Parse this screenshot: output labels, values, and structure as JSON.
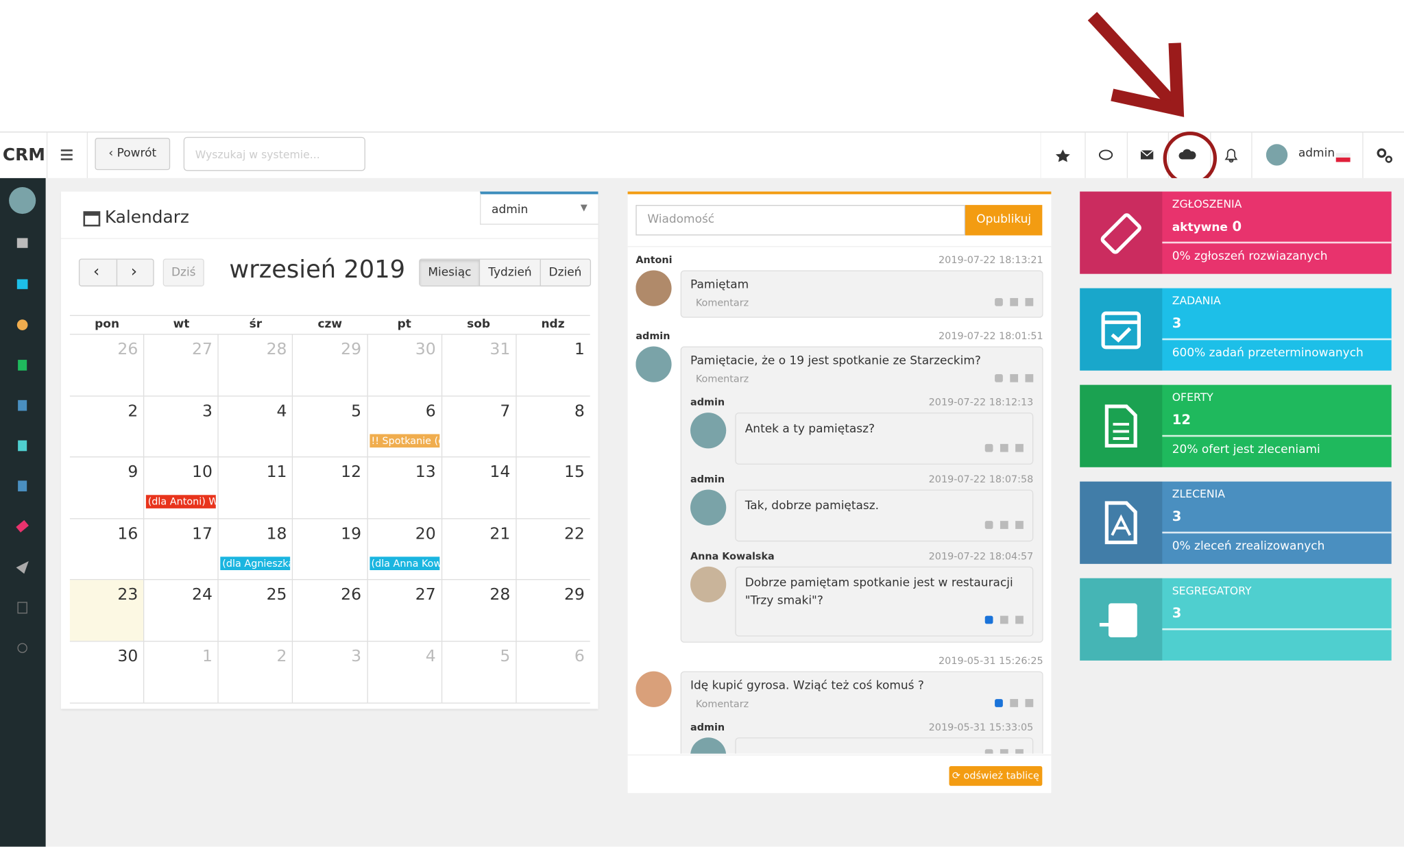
{
  "navbar": {
    "brand": "CRM",
    "back": "Powrót",
    "search_placeholder": "Wyszukaj w systemie...",
    "user": "admin"
  },
  "calendar": {
    "title": "Kalendarz",
    "user_select": "admin",
    "today": "Dziś",
    "month": "wrzesień 2019",
    "views": [
      "Miesiąc",
      "Tydzień",
      "Dzień"
    ],
    "weekdays": [
      "pon",
      "wt",
      "śr",
      "czw",
      "pt",
      "sob",
      "ndz"
    ],
    "weeks": [
      [
        {
          "day": 26,
          "muted": true
        },
        {
          "day": 27,
          "muted": true
        },
        {
          "day": 28,
          "muted": true
        },
        {
          "day": 29,
          "muted": true
        },
        {
          "day": 30,
          "muted": true
        },
        {
          "day": 31,
          "muted": true
        },
        1
      ],
      [
        2,
        3,
        4,
        5,
        {
          "day": 6,
          "event": "!! Spotkanie (d",
          "event_color": "#f0ad4e"
        },
        7,
        8
      ],
      [
        9,
        {
          "day": 10,
          "event": "(dla Antoni) Wy",
          "event_color": "#e8341c"
        },
        11,
        12,
        13,
        14,
        15
      ],
      [
        16,
        17,
        {
          "day": 18,
          "event": "(dla Agnieszka",
          "event_color": "#1ab5e0"
        },
        19,
        {
          "day": 20,
          "event": "(dla Anna Kow",
          "event_color": "#1ab5e0"
        },
        21,
        22
      ],
      [
        {
          "day": 23,
          "today": true
        },
        24,
        25,
        26,
        27,
        28,
        29
      ],
      [
        30,
        {
          "day": 1,
          "muted": true
        },
        {
          "day": 2,
          "muted": true
        },
        {
          "day": 3,
          "muted": true
        },
        {
          "day": 4,
          "muted": true
        },
        {
          "day": 5,
          "muted": true
        },
        {
          "day": 6,
          "muted": true
        }
      ]
    ]
  },
  "feed": {
    "placeholder": "Wiadomość",
    "publish": "Opublikuj",
    "comment": "Komentarz",
    "refresh": "odśwież tablicę",
    "posts": [
      {
        "author": "Antoni",
        "date": "2019-07-22 18:13:21",
        "text": "Pamiętam",
        "avatar": "#b08a6a"
      },
      {
        "author": "admin",
        "date": "2019-07-22 18:01:51",
        "text": "Pamiętacie, że o 19 jest spotkanie ze Starzeckim?",
        "avatar": "#7aa3a8",
        "replies": [
          {
            "author": "admin",
            "date": "2019-07-22 18:12:13",
            "text": "Antek a ty pamiętasz?",
            "avatar": "#7aa3a8"
          },
          {
            "author": "admin",
            "date": "2019-07-22 18:07:58",
            "text": "Tak, dobrze pamiętasz.",
            "avatar": "#7aa3a8"
          },
          {
            "author": "Anna Kowalska",
            "date": "2019-07-22 18:04:57",
            "text": "Dobrze pamiętam spotkanie jest w restauracji \"Trzy smaki\"?",
            "avatar": "#c9b49a",
            "liked": true
          }
        ]
      },
      {
        "date": "2019-05-31 15:26:25",
        "text": "Idę kupić gyrosa. Wziąć też coś komuś ?",
        "avatar": "#d9a07a",
        "liked": true,
        "replies": [
          {
            "author": "admin",
            "date": "2019-05-31 15:33:05",
            "avatar": "#7aa3a8"
          }
        ]
      }
    ]
  },
  "tiles": [
    {
      "title": "ZGŁOSZENIA",
      "value_label": "aktywne",
      "value": 0,
      "footer": "0% zgłoszeń rozwiazanych",
      "color": "#e8336d"
    },
    {
      "title": "ZADANIA",
      "value": 3,
      "footer": "600% zadań przeterminowanych",
      "color": "#1dbfe8"
    },
    {
      "title": "OFERTY",
      "value": 12,
      "footer": "20% ofert jest zleceniami",
      "color": "#1fb95d"
    },
    {
      "title": "ZLECENIA",
      "value": 3,
      "footer": "0% zleceń zrealizowanych",
      "color": "#4a8fc0"
    },
    {
      "title": "SEGREGATORY",
      "value": 3,
      "color": "#4fcfcf"
    }
  ]
}
